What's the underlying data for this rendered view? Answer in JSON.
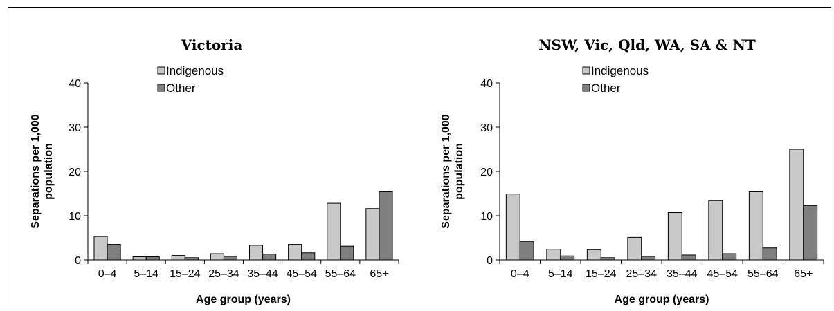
{
  "chart_data": [
    {
      "type": "bar",
      "title": "Victoria",
      "xlabel": "Age group (years)",
      "ylabel": "Separations per 1,000 population",
      "ylim": [
        0,
        40
      ],
      "yticks": [
        0,
        10,
        20,
        30,
        40
      ],
      "categories": [
        "0–4",
        "5–14",
        "15–24",
        "25–34",
        "35–44",
        "45–54",
        "55–64",
        "65+"
      ],
      "series": [
        {
          "name": "Indigenous",
          "color": "#c8c8c8",
          "values": [
            5.3,
            0.7,
            1.0,
            1.4,
            3.3,
            3.5,
            12.8,
            11.6
          ]
        },
        {
          "name": "Other",
          "color": "#7f7f7f",
          "values": [
            3.5,
            0.7,
            0.5,
            0.8,
            1.3,
            1.6,
            3.1,
            15.4
          ]
        }
      ],
      "legend": "top-center",
      "grid": false
    },
    {
      "type": "bar",
      "title": "NSW, Vic, Qld, WA, SA & NT",
      "xlabel": "Age group (years)",
      "ylabel": "Separations per 1,000 population",
      "ylim": [
        0,
        40
      ],
      "yticks": [
        0,
        10,
        20,
        30,
        40
      ],
      "categories": [
        "0–4",
        "5–14",
        "15–24",
        "25–34",
        "35–44",
        "45–54",
        "55–64",
        "65+"
      ],
      "series": [
        {
          "name": "Indigenous",
          "color": "#c8c8c8",
          "values": [
            14.9,
            2.4,
            2.3,
            5.1,
            10.7,
            13.4,
            15.4,
            25.0
          ]
        },
        {
          "name": "Other",
          "color": "#7f7f7f",
          "values": [
            4.2,
            0.9,
            0.5,
            0.8,
            1.1,
            1.4,
            2.7,
            12.3
          ]
        }
      ],
      "legend": "top-center",
      "grid": false
    }
  ]
}
